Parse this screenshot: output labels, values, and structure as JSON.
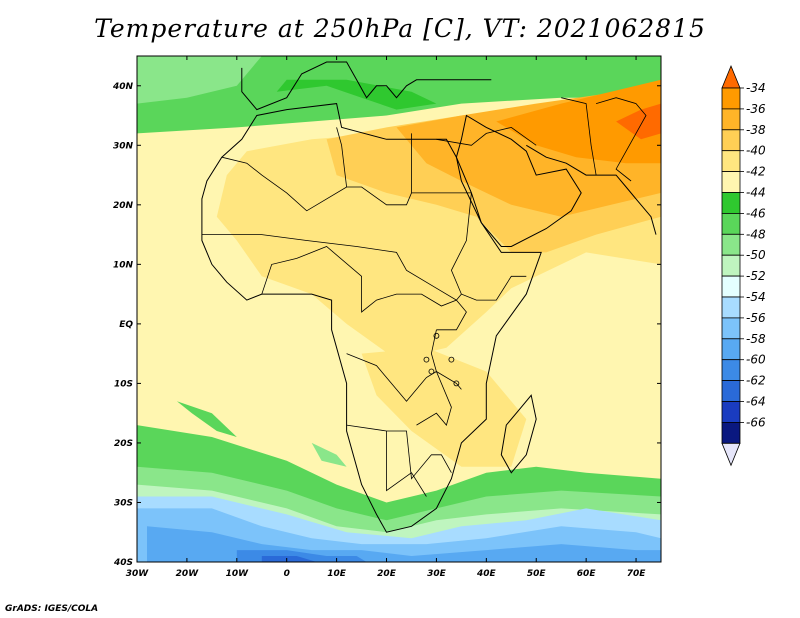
{
  "title": "Temperature at 250hPa [C], VT: 2021062815",
  "credit": "GrADS: IGES/COLA",
  "map": {
    "lon_range": [
      -30,
      75
    ],
    "lat_range": [
      -40,
      45
    ],
    "lon_ticks": [
      {
        "value": -30,
        "label": "30W"
      },
      {
        "value": -20,
        "label": "20W"
      },
      {
        "value": -10,
        "label": "10W"
      },
      {
        "value": 0,
        "label": "0"
      },
      {
        "value": 10,
        "label": "10E"
      },
      {
        "value": 20,
        "label": "20E"
      },
      {
        "value": 30,
        "label": "30E"
      },
      {
        "value": 40,
        "label": "40E"
      },
      {
        "value": 50,
        "label": "50E"
      },
      {
        "value": 60,
        "label": "60E"
      },
      {
        "value": 70,
        "label": "70E"
      }
    ],
    "lat_ticks": [
      {
        "value": 40,
        "label": "40N"
      },
      {
        "value": 30,
        "label": "30N"
      },
      {
        "value": 20,
        "label": "20N"
      },
      {
        "value": 10,
        "label": "10N"
      },
      {
        "value": 0,
        "label": "EQ"
      },
      {
        "value": -10,
        "label": "10S"
      },
      {
        "value": -20,
        "label": "20S"
      },
      {
        "value": -30,
        "label": "30S"
      },
      {
        "value": -40,
        "label": "40S"
      }
    ]
  },
  "colorbar": {
    "labels": [
      "-34",
      "-36",
      "-38",
      "-40",
      "-42",
      "-44",
      "-46",
      "-48",
      "-50",
      "-52",
      "-54",
      "-56",
      "-58",
      "-60",
      "-62",
      "-64",
      "-66"
    ],
    "colors": [
      "#ff6a00",
      "#ff9a00",
      "#ffb428",
      "#ffcf55",
      "#ffe680",
      "#fff6b0",
      "#2fc82f",
      "#5ad65a",
      "#8ae68a",
      "#bff5bf",
      "#e4ffff",
      "#a8dcff",
      "#7cc3fa",
      "#58a9f2",
      "#3c8ae6",
      "#2a6ad8",
      "#1a3cc0",
      "#0a1880",
      "#e6e6fa"
    ]
  }
}
